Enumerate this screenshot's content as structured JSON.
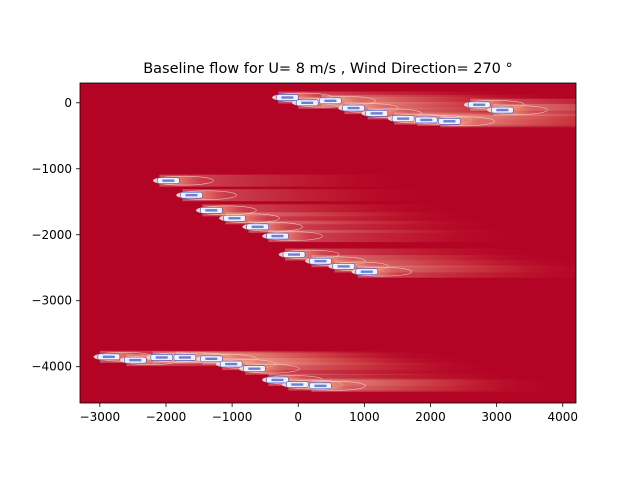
{
  "chart_data": {
    "type": "heatmap",
    "title": "Baseline flow for U= 8 m/s  ,  Wind Direction= 270  °",
    "xlabel": "",
    "ylabel": "",
    "xlim": [
      -3300,
      4200
    ],
    "ylim": [
      -4550,
      300
    ],
    "xticks": [
      -3000,
      -2000,
      -1000,
      0,
      1000,
      2000,
      3000,
      4000
    ],
    "xtick_labels": [
      "−3000",
      "−2000",
      "−1000",
      "0",
      "1000",
      "2000",
      "3000",
      "4000"
    ],
    "yticks": [
      0,
      -1000,
      -2000,
      -3000,
      -4000
    ],
    "ytick_labels": [
      "0",
      "−1000",
      "−2000",
      "−3000",
      "−4000"
    ],
    "grid": false,
    "background_color": "#b40426",
    "wake_color": "#f7b89c",
    "turbine_color": "#3b4cc0",
    "turbines": [
      {
        "x": -300,
        "y": 80
      },
      {
        "x": 0,
        "y": 0
      },
      {
        "x": 350,
        "y": 30
      },
      {
        "x": 700,
        "y": -80
      },
      {
        "x": 1050,
        "y": -160
      },
      {
        "x": 1450,
        "y": -240
      },
      {
        "x": 1800,
        "y": -260
      },
      {
        "x": 2150,
        "y": -280
      },
      {
        "x": 2600,
        "y": -30
      },
      {
        "x": 2950,
        "y": -110
      },
      {
        "x": -2100,
        "y": -1180
      },
      {
        "x": -1750,
        "y": -1400
      },
      {
        "x": -1450,
        "y": -1630
      },
      {
        "x": -1100,
        "y": -1750
      },
      {
        "x": -750,
        "y": -1880
      },
      {
        "x": -450,
        "y": -2020
      },
      {
        "x": -200,
        "y": -2300
      },
      {
        "x": 200,
        "y": -2400
      },
      {
        "x": 550,
        "y": -2480
      },
      {
        "x": 900,
        "y": -2560
      },
      {
        "x": -3000,
        "y": -3850
      },
      {
        "x": -2600,
        "y": -3900
      },
      {
        "x": -2200,
        "y": -3860
      },
      {
        "x": -1850,
        "y": -3860
      },
      {
        "x": -1450,
        "y": -3880
      },
      {
        "x": -1150,
        "y": -3960
      },
      {
        "x": -800,
        "y": -4030
      },
      {
        "x": -450,
        "y": -4200
      },
      {
        "x": -150,
        "y": -4270
      },
      {
        "x": 200,
        "y": -4290
      }
    ]
  }
}
